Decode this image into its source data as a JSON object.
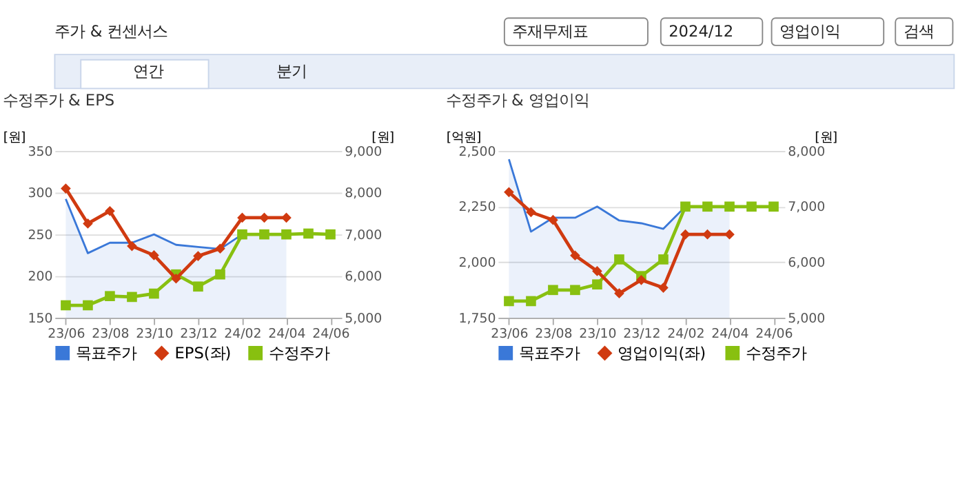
{
  "chart_data": [
    {
      "type": "line",
      "title": "수정주가 & EPS",
      "annotations": [
        "주가 & 컨센서스",
        "주재무제표",
        "2024/12",
        "영업이익",
        "검색",
        "연간",
        "분기"
      ],
      "categories": [
        "23/06",
        null,
        "23/08",
        null,
        "23/10",
        null,
        "23/12",
        null,
        "24/02",
        null,
        "24/04",
        null,
        "24/06"
      ],
      "ylabel": "[원]",
      "y2label": "[원]",
      "ylim": [
        150,
        350
      ],
      "yticks": [
        150,
        200,
        250,
        300,
        350
      ],
      "y2lim": [
        5000,
        9000
      ],
      "y2ticks": [
        {
          "value": 5000,
          "label": "5,000"
        },
        {
          "value": 6000,
          "label": "6,000"
        },
        {
          "value": 7000,
          "label": "7,000"
        },
        {
          "value": 8000,
          "label": "8,000"
        },
        {
          "value": 9000,
          "label": "9,000"
        }
      ],
      "grid": "y",
      "legend": "bottom",
      "series": [
        {
          "name": "목표주가",
          "type": "area",
          "axis": "y2",
          "marker": "none",
          "color": "#3a78d8",
          "values": [
            7850,
            6550,
            6800,
            6800,
            7000,
            6750,
            6700,
            6650,
            7000,
            7000,
            7000,
            null,
            null
          ]
        },
        {
          "name": "EPS(좌)",
          "marker": "diamond",
          "color": "#d03a10",
          "values": [
            305,
            263,
            278,
            236,
            225,
            197,
            224,
            233,
            270,
            270,
            270,
            null,
            null
          ]
        },
        {
          "name": "수정주가",
          "axis": "y2",
          "marker": "square",
          "color": "#88c010",
          "values": [
            5300,
            5300,
            5520,
            5500,
            5580,
            6040,
            5750,
            6040,
            7000,
            7000,
            7000,
            7020,
            7000
          ]
        }
      ]
    },
    {
      "type": "line",
      "title": "수정주가 & 영업이익",
      "categories": [
        "23/06",
        null,
        "23/08",
        null,
        "23/10",
        null,
        "23/12",
        null,
        "24/02",
        null,
        "24/04",
        null,
        "24/06"
      ],
      "ylabel": "[억원]",
      "y2label": "[원]",
      "ylim": [
        1750,
        2500
      ],
      "yticks": [
        {
          "value": 1750,
          "label": "1,750"
        },
        {
          "value": 2000,
          "label": "2,000"
        },
        {
          "value": 2250,
          "label": "2,250"
        },
        {
          "value": 2500,
          "label": "2,500"
        }
      ],
      "y2lim": [
        5000,
        8000
      ],
      "y2ticks": [
        {
          "value": 5000,
          "label": "5,000"
        },
        {
          "value": 6000,
          "label": "6,000"
        },
        {
          "value": 7000,
          "label": "7,000"
        },
        {
          "value": 8000,
          "label": "8,000"
        }
      ],
      "grid": "y",
      "legend": "bottom",
      "series": [
        {
          "name": "목표주가",
          "type": "area",
          "axis": "y2",
          "marker": "none",
          "color": "#3a78d8",
          "values": [
            7850,
            6550,
            6800,
            6800,
            7000,
            6750,
            6700,
            6600,
            7000,
            7000,
            7000,
            null,
            null
          ]
        },
        {
          "name": "영업이익(좌)",
          "marker": "diamond",
          "color": "#d03a10",
          "values": [
            2315,
            2225,
            2190,
            2030,
            1960,
            1860,
            1920,
            1885,
            2125,
            2125,
            2125,
            null,
            null
          ]
        },
        {
          "name": "수정주가",
          "axis": "y2",
          "marker": "square",
          "color": "#88c010",
          "values": [
            5300,
            5300,
            5500,
            5500,
            5600,
            6050,
            5750,
            6050,
            7000,
            7000,
            7000,
            7000,
            7000
          ]
        }
      ]
    }
  ]
}
